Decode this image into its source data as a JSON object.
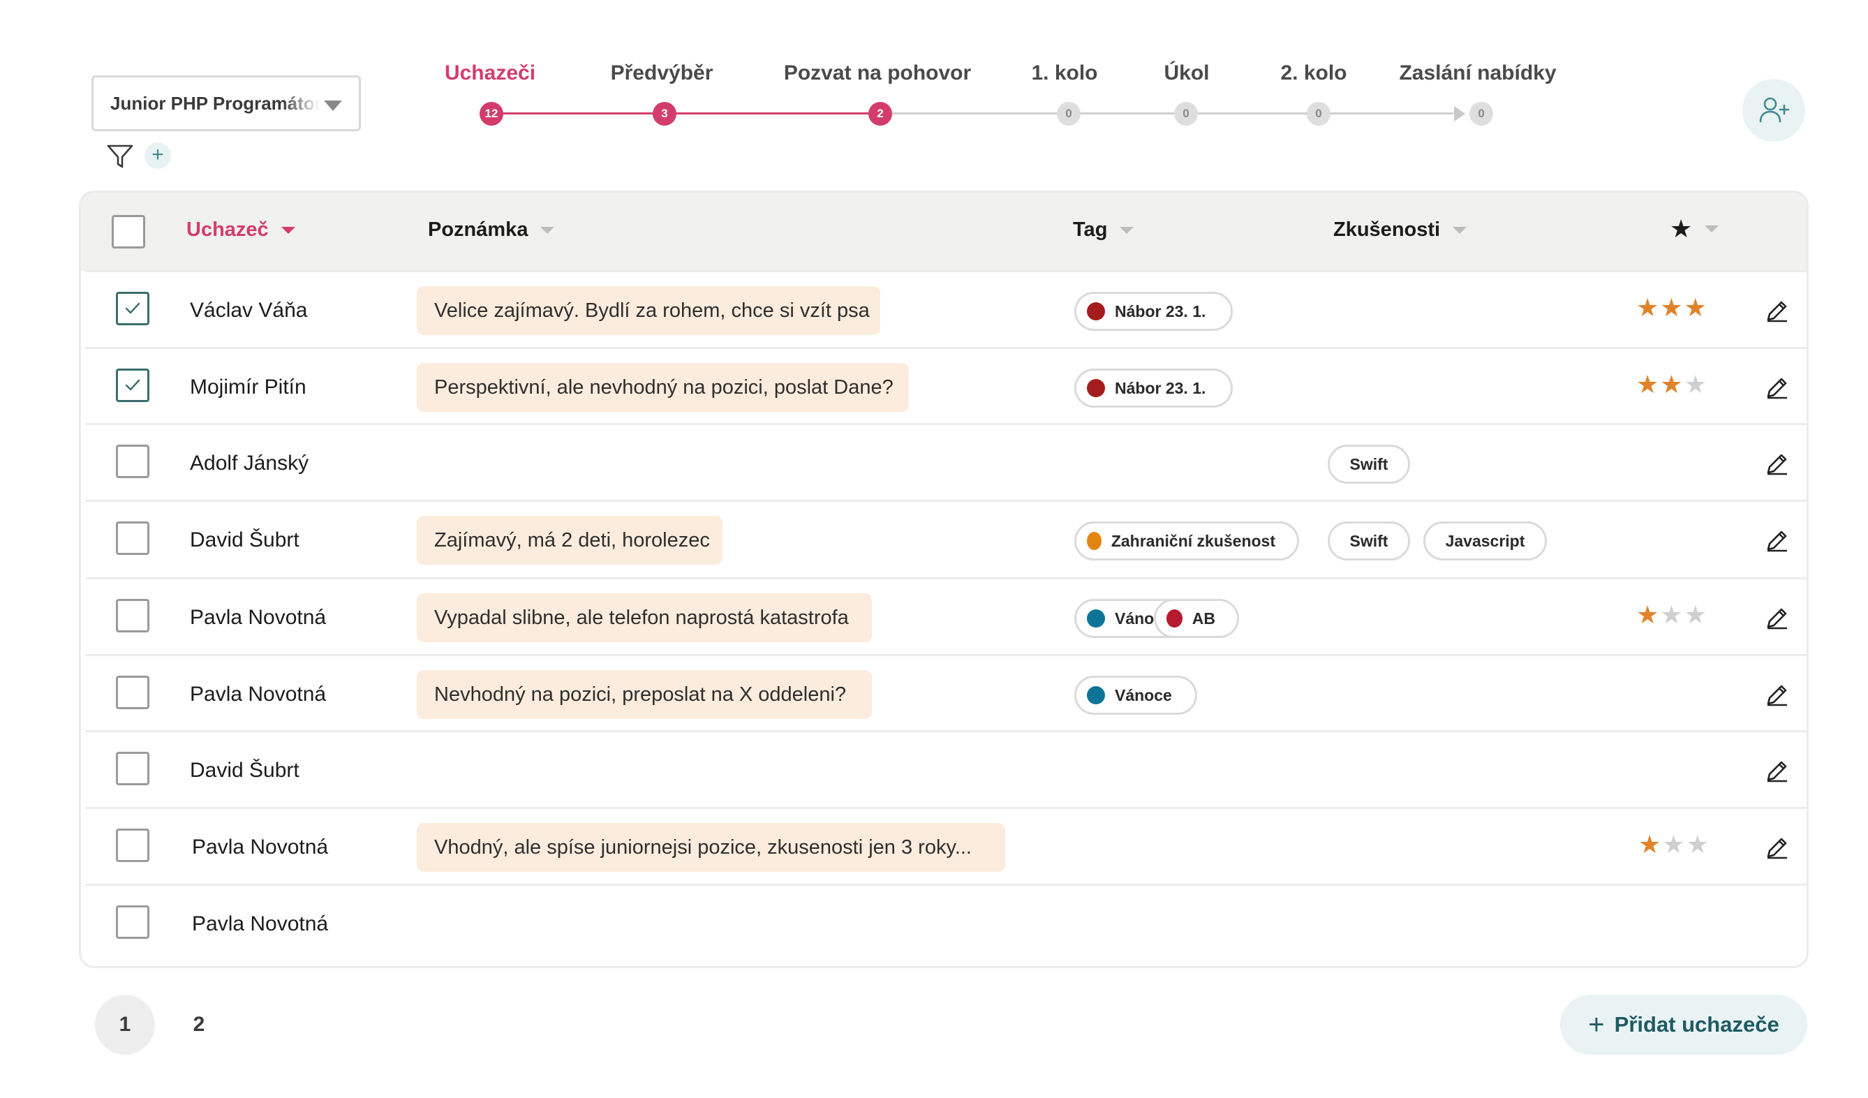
{
  "job_select": {
    "value": "Junior PHP Programátor"
  },
  "filter": {
    "add_label": "+"
  },
  "pipeline": [
    {
      "label": "Uchazeči",
      "count": "12",
      "active": true
    },
    {
      "label": "Předvýběr",
      "count": "3",
      "active": true
    },
    {
      "label": "Pozvat na pohovor",
      "count": "2",
      "active": true
    },
    {
      "label": "1. kolo",
      "count": "0",
      "active": false
    },
    {
      "label": "Úkol",
      "count": "0",
      "active": false
    },
    {
      "label": "2. kolo",
      "count": "0",
      "active": false
    },
    {
      "label": "Zaslání nabídky",
      "count": "0",
      "active": false
    }
  ],
  "table": {
    "headers": {
      "candidate": "Uchazeč",
      "note": "Poznámka",
      "tag": "Tag",
      "experience": "Zkušenosti",
      "rating": "★"
    },
    "rows": [
      {
        "checked": true,
        "name": "Václav Váňa",
        "note": "Velice zajímavý. Bydlí za rohem, chce si vzít psa",
        "tags": [
          {
            "label": "Nábor 23. 1.",
            "color": "#a51c1c"
          }
        ],
        "experience": [],
        "rating": 3,
        "rating_max": 3
      },
      {
        "checked": true,
        "name": "Mojimír Pitín",
        "note": "Perspektivní, ale nevhodný na pozici, poslat Dane?",
        "tags": [
          {
            "label": "Nábor 23. 1.",
            "color": "#a51c1c"
          }
        ],
        "experience": [],
        "rating": 2,
        "rating_max": 3
      },
      {
        "checked": false,
        "name": "Adolf Jánský",
        "note": "",
        "tags": [],
        "experience": [
          "Swift"
        ],
        "rating": 0,
        "rating_max": 0
      },
      {
        "checked": false,
        "name": "David Šubrt",
        "note": "Zajímavý, má 2 deti, horolezec",
        "tags": [
          {
            "label": "Zahraniční zkušenost",
            "color": "#e38410"
          }
        ],
        "experience": [
          "Swift",
          "Javascript"
        ],
        "rating": 0,
        "rating_max": 0
      },
      {
        "checked": false,
        "name": "Pavla Novotná",
        "note": "Vypadal slibne, ale telefon naprostá katastrofa",
        "tags": [
          {
            "label": "Vánoce",
            "color": "#0d7497"
          },
          {
            "label": "AB",
            "color": "#b51a2e"
          }
        ],
        "experience": [],
        "rating": 1,
        "rating_max": 3
      },
      {
        "checked": false,
        "name": "Pavla Novotná",
        "note": "Nevhodný na pozici, preposlat na X oddeleni?",
        "tags": [
          {
            "label": "Vánoce",
            "color": "#0d7497"
          }
        ],
        "experience": [],
        "rating": 0,
        "rating_max": 0
      },
      {
        "checked": false,
        "name": "David Šubrt",
        "note": "",
        "tags": [],
        "experience": [],
        "rating": 0,
        "rating_max": 0
      },
      {
        "checked": false,
        "name": "Pavla Novotná",
        "note": "Vhodný, ale spíse juniornejsi pozice, zkusenosti jen 3 roky...",
        "tags": [],
        "experience": [],
        "rating": 1,
        "rating_max": 3
      },
      {
        "checked": false,
        "name": "Pavla Novotná",
        "note": "",
        "tags": [],
        "experience": [],
        "rating": 0,
        "rating_max": 0,
        "no_edit": true
      }
    ]
  },
  "pagination": {
    "pages": [
      "1",
      "2"
    ],
    "current": "1"
  },
  "add_candidate": {
    "label": "Přidat uchazeče",
    "icon": "plus-icon"
  },
  "colors": {
    "accent": "#d23d6b",
    "note_bg": "#fcecdd",
    "star": "#e0832a",
    "teal": "#1e5a64"
  }
}
